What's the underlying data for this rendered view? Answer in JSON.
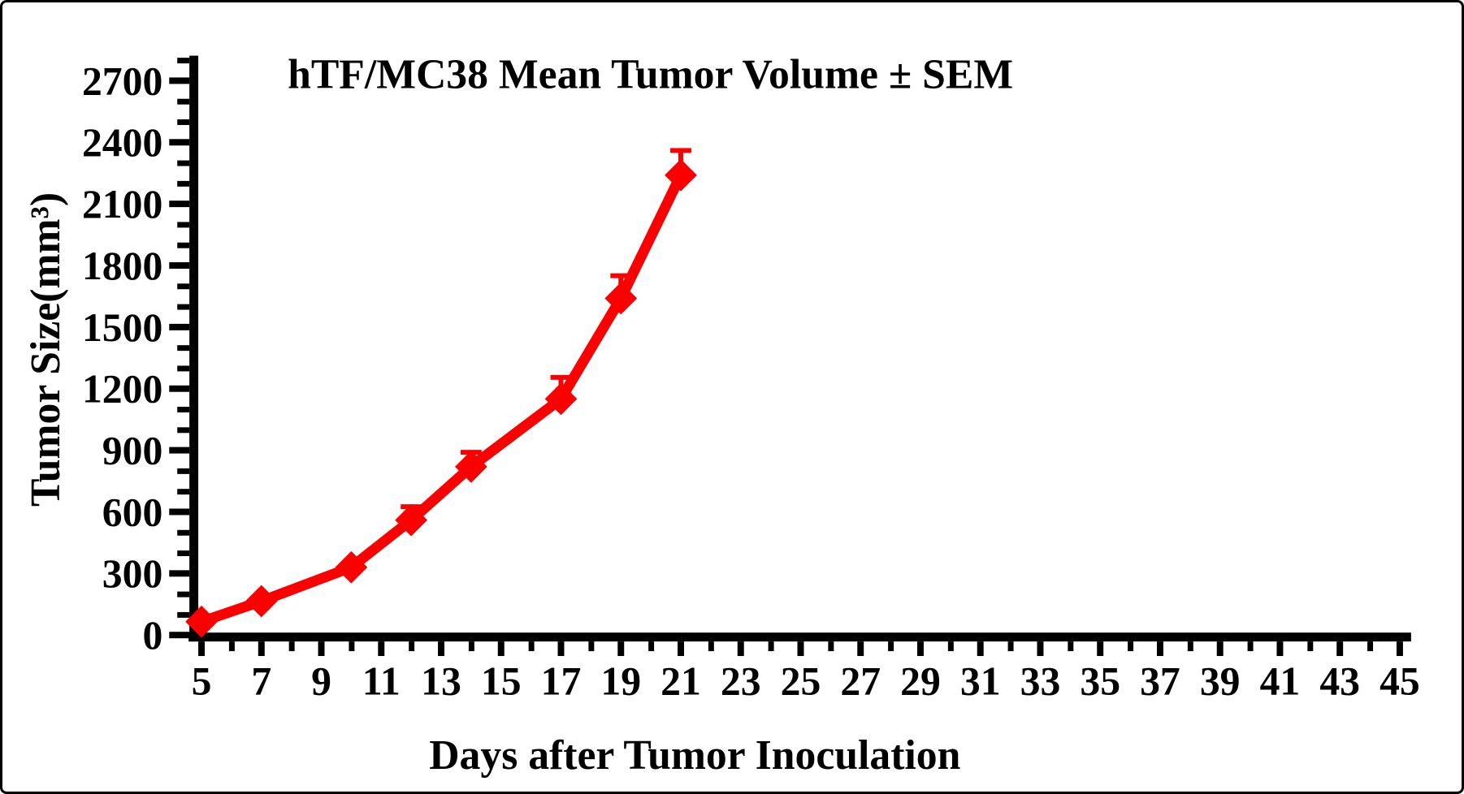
{
  "chart_data": {
    "type": "line",
    "title": "hTF/MC38 Mean Tumor Volume ± SEM",
    "xlabel": "Days after Tumor Inoculation",
    "ylabel": "Tumor Size(mm³)",
    "series": [
      {
        "name": "hTF/MC38 mean tumor volume",
        "x": [
          5,
          7,
          10,
          12,
          14,
          17,
          19,
          21
        ],
        "y": [
          65,
          165,
          330,
          560,
          820,
          1150,
          1640,
          2240
        ],
        "sem_upper": [
          null,
          null,
          null,
          65,
          70,
          105,
          110,
          120
        ],
        "marker": "diamond",
        "color": "#FA0000"
      }
    ],
    "error_bar_style": "upper SEM caps visible from day 12 onward",
    "xlim": [
      5,
      45.5
    ],
    "ylim": [
      0,
      2800
    ],
    "x_major_ticks": [
      5,
      7,
      9,
      11,
      13,
      15,
      17,
      19,
      21,
      23,
      25,
      27,
      29,
      31,
      33,
      35,
      37,
      39,
      41,
      43,
      45
    ],
    "x_minor_ticks": [
      6,
      8,
      10,
      12,
      14,
      16,
      18,
      20,
      22,
      24,
      26,
      28,
      30,
      32,
      34,
      36,
      38,
      40,
      42,
      44
    ],
    "y_major_ticks": [
      0,
      300,
      600,
      900,
      1200,
      1500,
      1800,
      2100,
      2400,
      2700
    ],
    "y_minor_ticks": [
      100,
      200,
      400,
      500,
      700,
      800,
      1000,
      1100,
      1300,
      1400,
      1600,
      1700,
      1900,
      2000,
      2200,
      2300,
      2500,
      2600,
      2800
    ],
    "grid": false,
    "legend": "none",
    "axis_color": "#000000",
    "background": "#FFFFFF"
  }
}
